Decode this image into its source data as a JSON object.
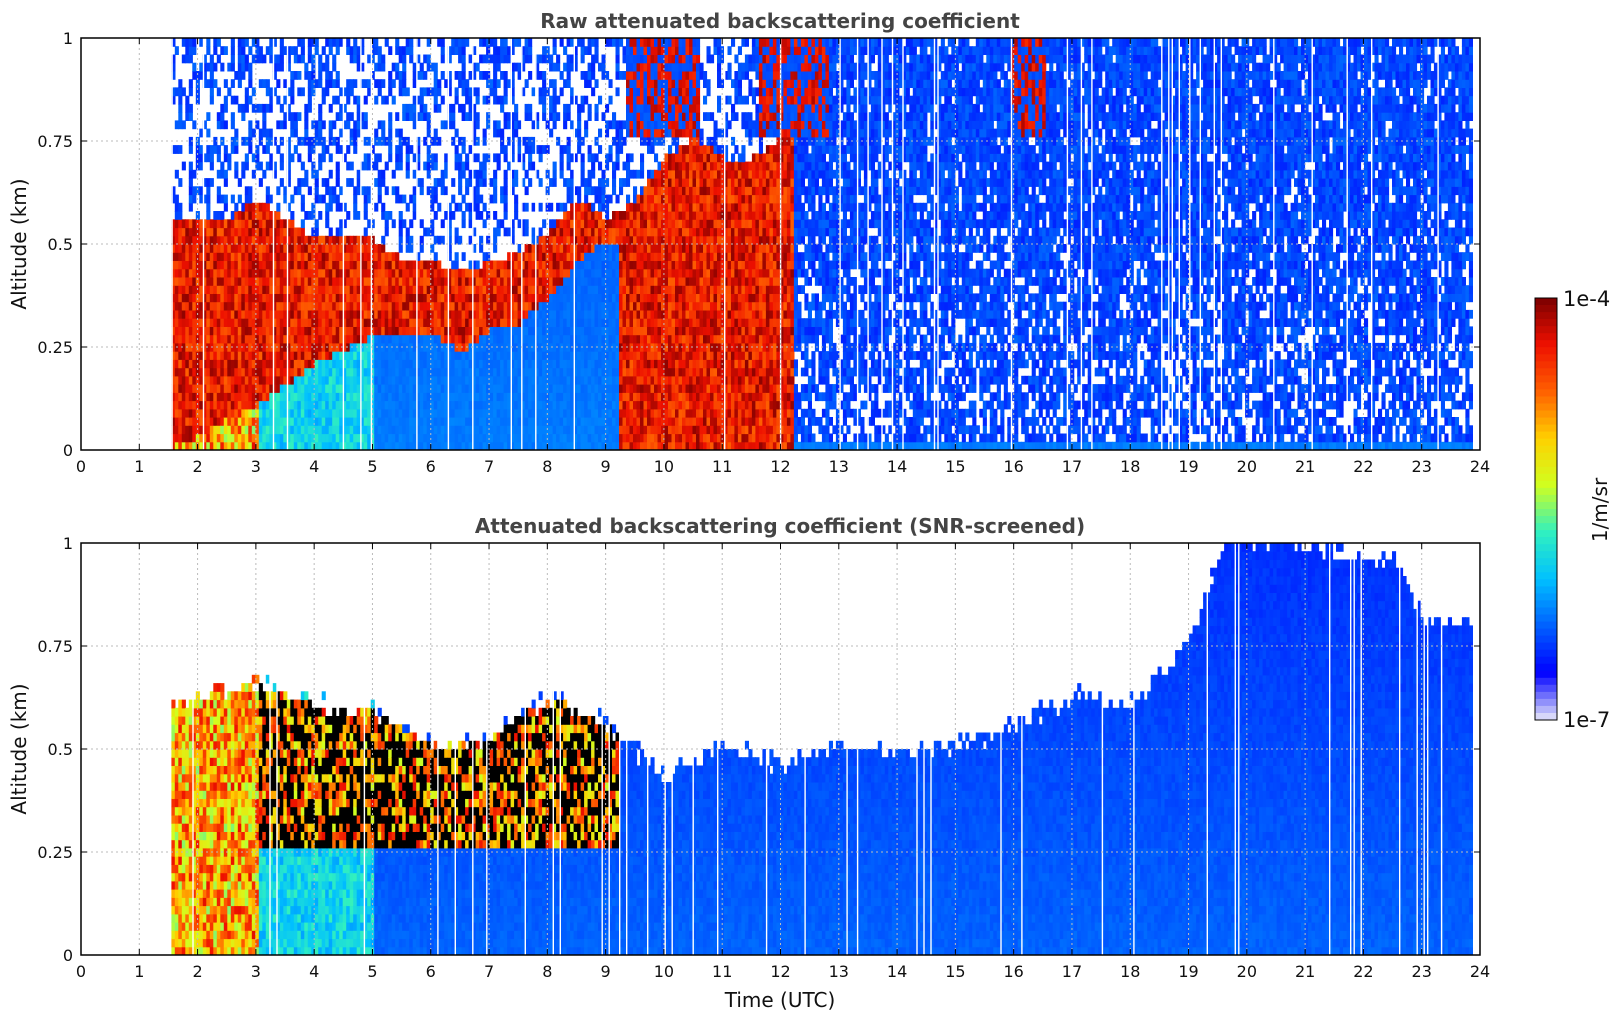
{
  "chart_data": [
    {
      "type": "heatmap",
      "title": "Raw attenuated backscattering coefficient",
      "xlabel": "",
      "ylabel": "Altitude (km)",
      "xlim": [
        0,
        24
      ],
      "ylim": [
        0,
        1
      ],
      "xticks": [
        0,
        1,
        2,
        3,
        4,
        5,
        6,
        7,
        8,
        9,
        10,
        11,
        12,
        13,
        14,
        15,
        16,
        17,
        18,
        19,
        20,
        21,
        22,
        23,
        24
      ],
      "yticks": [
        0,
        0.25,
        0.5,
        0.75,
        1
      ],
      "ytick_labels": [
        "0",
        "0.25",
        "0.5",
        "0.75",
        "1"
      ],
      "grid": true,
      "data_start_hour": 1.55,
      "data_end_hour": 23.85,
      "aerosol_layer_top_km": [
        [
          1.6,
          0.55
        ],
        [
          2.0,
          0.55
        ],
        [
          2.5,
          0.55
        ],
        [
          3.0,
          0.6
        ],
        [
          3.5,
          0.55
        ],
        [
          4.0,
          0.5
        ],
        [
          4.5,
          0.52
        ],
        [
          5.0,
          0.5
        ],
        [
          5.5,
          0.45
        ],
        [
          6.0,
          0.45
        ],
        [
          6.5,
          0.42
        ],
        [
          7.0,
          0.45
        ],
        [
          7.5,
          0.47
        ],
        [
          8.0,
          0.52
        ],
        [
          8.5,
          0.6
        ],
        [
          9.0,
          0.55
        ],
        [
          9.5,
          0.6
        ],
        [
          10.0,
          0.7
        ],
        [
          10.5,
          0.75
        ],
        [
          11.0,
          0.7
        ],
        [
          11.5,
          0.7
        ],
        [
          12.0,
          0.75
        ]
      ],
      "aerosol_layer_bottom_km": [
        [
          1.6,
          0.0
        ],
        [
          3.0,
          0.1
        ],
        [
          4.0,
          0.2
        ],
        [
          5.0,
          0.27
        ],
        [
          6.0,
          0.27
        ],
        [
          6.5,
          0.23
        ],
        [
          7.0,
          0.28
        ],
        [
          7.5,
          0.3
        ],
        [
          8.0,
          0.36
        ],
        [
          8.5,
          0.45
        ],
        [
          9.0,
          0.5
        ]
      ],
      "high_cloud_hours": [
        [
          9.3,
          10.6
        ],
        [
          11.6,
          12.8
        ],
        [
          15.9,
          16.5
        ]
      ]
    },
    {
      "type": "heatmap",
      "title": "Attenuated backscattering coefficient (SNR-screened)",
      "xlabel": "Time (UTC)",
      "ylabel": "Altitude (km)",
      "xlim": [
        0,
        24
      ],
      "ylim": [
        0,
        1
      ],
      "xticks": [
        0,
        1,
        2,
        3,
        4,
        5,
        6,
        7,
        8,
        9,
        10,
        11,
        12,
        13,
        14,
        15,
        16,
        17,
        18,
        19,
        20,
        21,
        22,
        23,
        24
      ],
      "yticks": [
        0,
        0.25,
        0.5,
        0.75,
        1
      ],
      "ytick_labels": [
        "0",
        "0.25",
        "0.5",
        "0.75",
        "1"
      ],
      "grid": true,
      "valid_signal_top_km": [
        [
          1.6,
          0.6
        ],
        [
          3.0,
          0.65
        ],
        [
          4.0,
          0.6
        ],
        [
          5.0,
          0.58
        ],
        [
          6.0,
          0.5
        ],
        [
          7.0,
          0.52
        ],
        [
          8.0,
          0.62
        ],
        [
          9.0,
          0.55
        ],
        [
          10.0,
          0.42
        ],
        [
          11.0,
          0.5
        ],
        [
          12.0,
          0.45
        ],
        [
          13.0,
          0.5
        ],
        [
          14.0,
          0.48
        ],
        [
          15.0,
          0.5
        ],
        [
          16.0,
          0.55
        ],
        [
          17.0,
          0.62
        ],
        [
          18.0,
          0.6
        ],
        [
          19.0,
          0.75
        ],
        [
          19.6,
          1.0
        ],
        [
          22.5,
          0.95
        ],
        [
          23.0,
          0.8
        ],
        [
          23.8,
          0.8
        ]
      ]
    }
  ],
  "colorbar": {
    "label": "1/m/sr",
    "max_label": "1e-4",
    "min_label": "1e-7",
    "colors": [
      "#e8e8f8",
      "#0000ff",
      "#0060ff",
      "#00c0ff",
      "#30f0c0",
      "#d0ff20",
      "#ffd000",
      "#ff6000",
      "#ee1000",
      "#7a0000"
    ]
  }
}
